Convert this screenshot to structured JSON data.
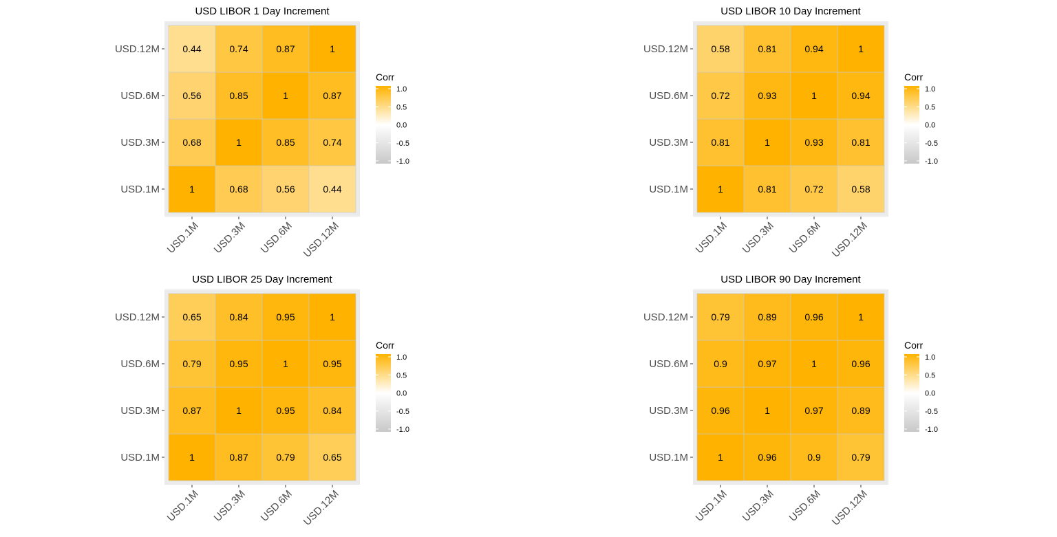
{
  "colors": {
    "high": "#FFB300",
    "mid": "#FFFFFF",
    "low": "#C8C8C8",
    "panel_bg": "#EBEBEB",
    "tile_border": "#C8C8C8",
    "axis_text": "#4D4D4D"
  },
  "chart_data": [
    {
      "type": "heatmap",
      "title": "USD LIBOR 1 Day Increment",
      "x_categories": [
        "USD.1M",
        "USD.3M",
        "USD.6M",
        "USD.12M"
      ],
      "y_categories": [
        "USD.1M",
        "USD.3M",
        "USD.6M",
        "USD.12M"
      ],
      "values": [
        [
          1,
          0.68,
          0.56,
          0.44
        ],
        [
          0.68,
          1,
          0.85,
          0.74
        ],
        [
          0.56,
          0.85,
          1,
          0.87
        ],
        [
          0.44,
          0.74,
          0.87,
          1
        ]
      ],
      "legend": {
        "title": "Corr",
        "limits": [
          -1,
          1
        ],
        "ticks": [
          "1.0",
          "0.5",
          "0.0",
          "-0.5",
          "-1.0"
        ],
        "placement": "right"
      }
    },
    {
      "type": "heatmap",
      "title": "USD LIBOR 10 Day Increment",
      "x_categories": [
        "USD.1M",
        "USD.3M",
        "USD.6M",
        "USD.12M"
      ],
      "y_categories": [
        "USD.1M",
        "USD.3M",
        "USD.6M",
        "USD.12M"
      ],
      "values": [
        [
          1,
          0.81,
          0.72,
          0.58
        ],
        [
          0.81,
          1,
          0.93,
          0.81
        ],
        [
          0.72,
          0.93,
          1,
          0.94
        ],
        [
          0.58,
          0.81,
          0.94,
          1
        ]
      ],
      "legend": {
        "title": "Corr",
        "limits": [
          -1,
          1
        ],
        "ticks": [
          "1.0",
          "0.5",
          "0.0",
          "-0.5",
          "-1.0"
        ],
        "placement": "right"
      }
    },
    {
      "type": "heatmap",
      "title": "USD LIBOR 25 Day Increment",
      "x_categories": [
        "USD.1M",
        "USD.3M",
        "USD.6M",
        "USD.12M"
      ],
      "y_categories": [
        "USD.1M",
        "USD.3M",
        "USD.6M",
        "USD.12M"
      ],
      "values": [
        [
          1,
          0.87,
          0.79,
          0.65
        ],
        [
          0.87,
          1,
          0.95,
          0.84
        ],
        [
          0.79,
          0.95,
          1,
          0.95
        ],
        [
          0.65,
          0.84,
          0.95,
          1
        ]
      ],
      "legend": {
        "title": "Corr",
        "limits": [
          -1,
          1
        ],
        "ticks": [
          "1.0",
          "0.5",
          "0.0",
          "-0.5",
          "-1.0"
        ],
        "placement": "right"
      }
    },
    {
      "type": "heatmap",
      "title": "USD LIBOR 90 Day Increment",
      "x_categories": [
        "USD.1M",
        "USD.3M",
        "USD.6M",
        "USD.12M"
      ],
      "y_categories": [
        "USD.1M",
        "USD.3M",
        "USD.6M",
        "USD.12M"
      ],
      "values": [
        [
          1,
          0.96,
          0.9,
          0.79
        ],
        [
          0.96,
          1,
          0.97,
          0.89
        ],
        [
          0.9,
          0.97,
          1,
          0.96
        ],
        [
          0.79,
          0.89,
          0.96,
          1
        ]
      ],
      "legend": {
        "title": "Corr",
        "limits": [
          -1,
          1
        ],
        "ticks": [
          "1.0",
          "0.5",
          "0.0",
          "-0.5",
          "-1.0"
        ],
        "placement": "right"
      }
    }
  ]
}
